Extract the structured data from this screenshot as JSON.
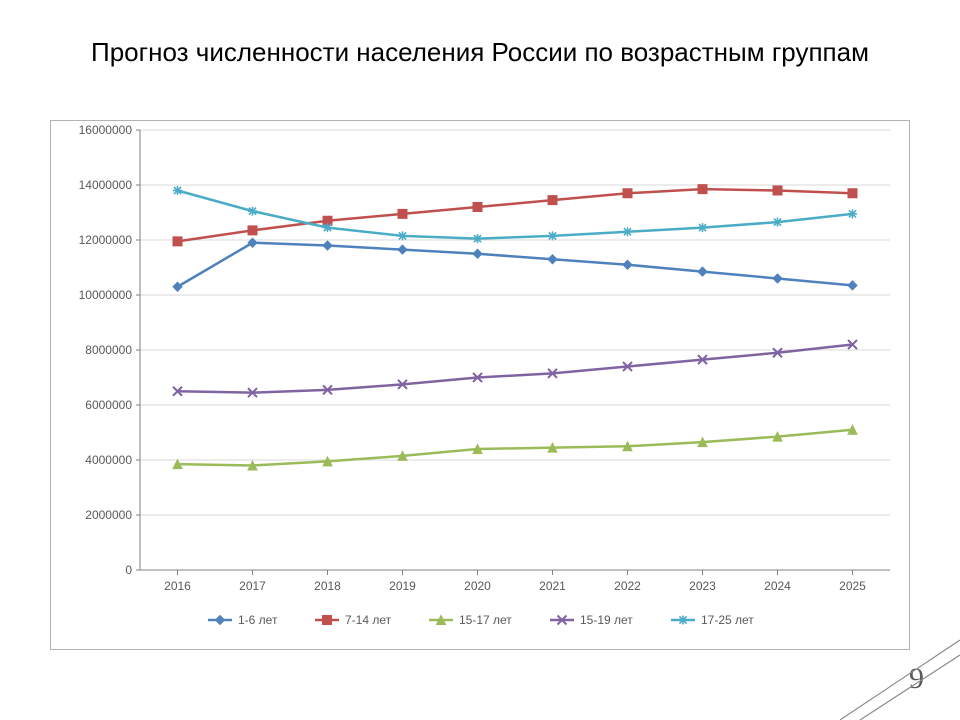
{
  "title": "Прогноз численности населения России по возрастным группам",
  "page_number": "9",
  "chart": {
    "type": "line",
    "background_color": "#ffffff",
    "plot_border_color": "#b3b3b3",
    "grid_color": "#d9d9d9",
    "axis_color": "#808080",
    "tick_font_size": 12,
    "tick_color": "#595959",
    "legend_font_size": 12,
    "legend_color": "#595959",
    "x_categories": [
      "2016",
      "2017",
      "2018",
      "2019",
      "2020",
      "2021",
      "2022",
      "2023",
      "2024",
      "2025"
    ],
    "y_min": 0,
    "y_max": 16000000,
    "y_tick_step": 2000000,
    "series": [
      {
        "name": "1-6 лет",
        "color": "#4f81bd",
        "marker": "diamond",
        "marker_size": 9,
        "line_width": 2.5,
        "values": [
          10300000,
          11900000,
          11800000,
          11650000,
          11500000,
          11300000,
          11100000,
          10850000,
          10600000,
          10350000
        ]
      },
      {
        "name": "7-14 лет",
        "color": "#c0504d",
        "marker": "square",
        "marker_size": 9,
        "line_width": 2.5,
        "values": [
          11950000,
          12350000,
          12700000,
          12950000,
          13200000,
          13450000,
          13700000,
          13850000,
          13800000,
          13700000
        ]
      },
      {
        "name": "15-17 лет",
        "color": "#9bbb59",
        "marker": "triangle",
        "marker_size": 9,
        "line_width": 2.5,
        "values": [
          3850000,
          3800000,
          3950000,
          4150000,
          4400000,
          4450000,
          4500000,
          4650000,
          4850000,
          5100000
        ]
      },
      {
        "name": "15-19 лет",
        "color": "#8064a2",
        "marker": "x",
        "marker_size": 9,
        "line_width": 2.5,
        "values": [
          6500000,
          6450000,
          6550000,
          6750000,
          7000000,
          7150000,
          7400000,
          7650000,
          7900000,
          8200000
        ]
      },
      {
        "name": "17-25 лет",
        "color": "#4bacc6",
        "marker": "asterisk",
        "marker_size": 9,
        "line_width": 2.5,
        "values": [
          13800000,
          13050000,
          12450000,
          12150000,
          12050000,
          12150000,
          12300000,
          12450000,
          12650000,
          12950000
        ]
      }
    ]
  },
  "corner_accent_color": "#8c8c8c"
}
